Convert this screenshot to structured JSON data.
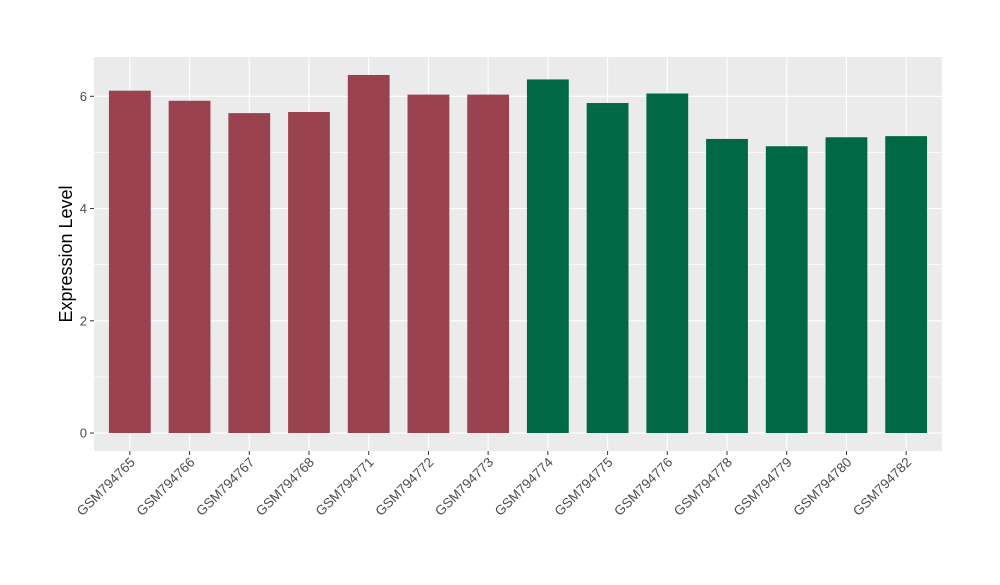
{
  "chart_data": {
    "type": "bar",
    "title": "",
    "xlabel": "",
    "ylabel": "Expression Level",
    "categories": [
      "GSM794765",
      "GSM794766",
      "GSM794767",
      "GSM794768",
      "GSM794771",
      "GSM794772",
      "GSM794773",
      "GSM794774",
      "GSM794775",
      "GSM794776",
      "GSM794778",
      "GSM794779",
      "GSM794780",
      "GSM794782"
    ],
    "values": [
      6.1,
      5.92,
      5.7,
      5.72,
      6.38,
      6.03,
      6.03,
      6.3,
      5.88,
      6.05,
      5.24,
      5.11,
      5.27,
      5.29
    ],
    "groups": [
      1,
      1,
      1,
      1,
      1,
      1,
      1,
      2,
      2,
      2,
      2,
      2,
      2,
      2
    ],
    "group_colors": {
      "1": "#9a4250",
      "2": "#006844"
    },
    "yticks": [
      0,
      2,
      4,
      6
    ],
    "ylim": [
      -0.32,
      6.7
    ],
    "grid": true,
    "legend": "none",
    "panel_background": "#ebebeb",
    "grid_color": "#ffffff"
  }
}
